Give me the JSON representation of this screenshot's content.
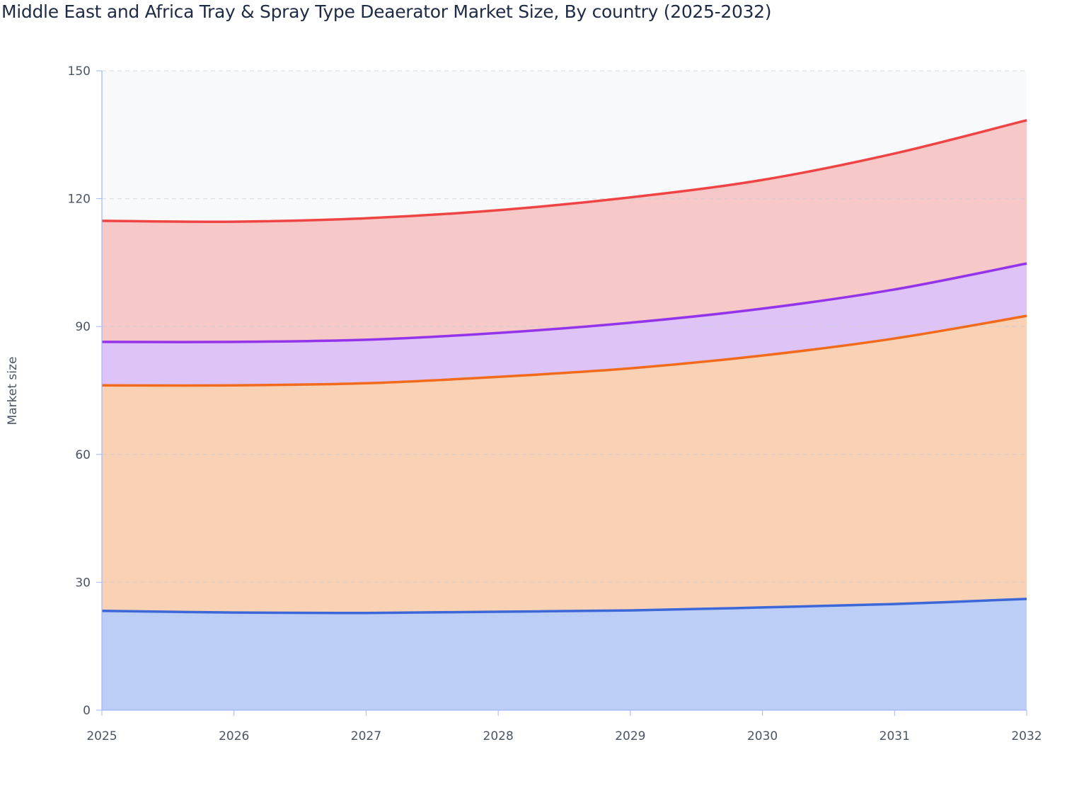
{
  "chart_data": {
    "type": "area",
    "stacked": true,
    "title": "Middle East and Africa Tray & Spray Type Deaerator Market Size, By country (2025-2032)",
    "xlabel": "",
    "ylabel": "Market size",
    "x": [
      "2025",
      "2026",
      "2027",
      "2028",
      "2029",
      "2030",
      "2031",
      "2032"
    ],
    "ylim": [
      0,
      150
    ],
    "yticks": [
      0,
      30,
      60,
      90,
      120,
      150
    ],
    "grid": true,
    "legend": "none",
    "series": [
      {
        "color": "#3b67d9",
        "fill": "#b9cbf5",
        "values": [
          23.3,
          22.9,
          22.8,
          23.1,
          23.4,
          24.1,
          24.9,
          26.1
        ]
      },
      {
        "color": "#f26b1d",
        "fill": "#f9d0b2",
        "values": [
          52.9,
          53.3,
          53.9,
          55.1,
          56.8,
          59.1,
          62.3,
          66.4
        ]
      },
      {
        "color": "#9333ea",
        "fill": "#dcc0f5",
        "values": [
          10.2,
          10.2,
          10.2,
          10.3,
          10.7,
          11.0,
          11.5,
          12.3
        ]
      },
      {
        "color": "#ef4444",
        "fill": "#f6c5c5",
        "values": [
          28.4,
          28.2,
          28.5,
          28.8,
          29.4,
          30.2,
          31.9,
          33.6
        ]
      }
    ]
  }
}
